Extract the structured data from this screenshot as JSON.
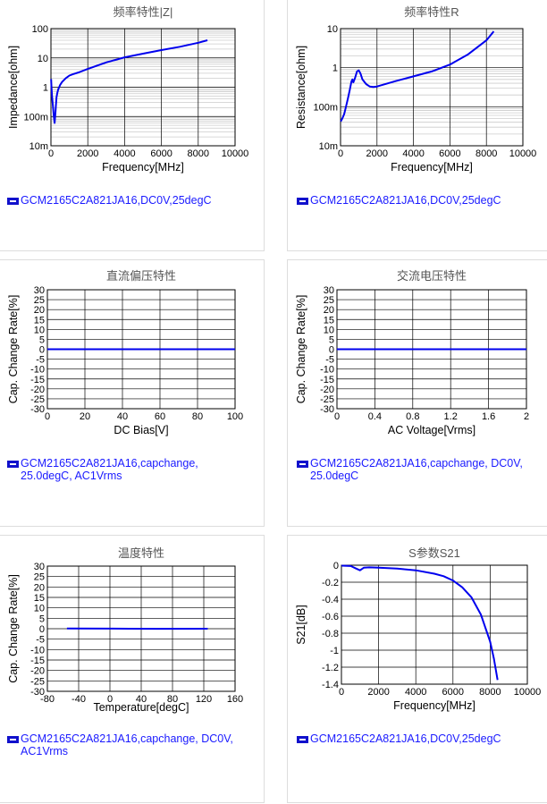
{
  "colors": {
    "series": "#0000ee",
    "legend_text": "#1a1aff",
    "grid": "#000000",
    "minor_grid": "#cccccc"
  },
  "chart_data": [
    {
      "type": "line",
      "title": "频率特性|Z|",
      "xlabel": "Frequency[MHz]",
      "ylabel": "Impedance[ohm]",
      "xlim": [
        0,
        10000
      ],
      "ylim": [
        0.01,
        100
      ],
      "yscale": "log",
      "grid": true,
      "xticks": [
        0,
        2000,
        4000,
        6000,
        8000,
        10000
      ],
      "xtick_labels": [
        "0",
        "2000",
        "4000",
        "6000",
        "8000",
        "10000"
      ],
      "yticks": [
        0.01,
        0.1,
        1,
        10,
        100
      ],
      "ytick_labels": [
        "10m",
        "100m",
        "1",
        "10",
        "100"
      ],
      "series": [
        {
          "name": "GCM2165C2A821JA16,DC0V,25degC",
          "x": [
            10,
            30,
            60,
            100,
            150,
            200,
            240,
            270,
            300,
            350,
            400,
            500,
            600,
            800,
            1000,
            1200,
            1500,
            2000,
            3000,
            4000,
            5000,
            6000,
            7000,
            8000,
            8500
          ],
          "y": [
            1.9,
            1.0,
            0.5,
            0.25,
            0.11,
            0.06,
            0.12,
            0.25,
            0.45,
            0.65,
            0.85,
            1.2,
            1.5,
            2.0,
            2.5,
            2.8,
            3.2,
            4.2,
            7.0,
            10.5,
            14.0,
            18.5,
            24.0,
            33.0,
            40.0
          ]
        }
      ],
      "legend": "GCM2165C2A821JA16,DC0V,25degC"
    },
    {
      "type": "line",
      "title": "频率特性R",
      "xlabel": "Frequency[MHz]",
      "ylabel": "Resistance[ohm]",
      "xlim": [
        0,
        10000
      ],
      "ylim": [
        0.01,
        10
      ],
      "yscale": "log",
      "grid": true,
      "xticks": [
        0,
        2000,
        4000,
        6000,
        8000,
        10000
      ],
      "xtick_labels": [
        "0",
        "2000",
        "4000",
        "6000",
        "8000",
        "10000"
      ],
      "yticks": [
        0.01,
        0.1,
        1,
        10
      ],
      "ytick_labels": [
        "10m",
        "100m",
        "1",
        "10"
      ],
      "series": [
        {
          "name": "GCM2165C2A821JA16,DC0V,25degC",
          "x": [
            10,
            100,
            200,
            300,
            400,
            500,
            600,
            650,
            700,
            800,
            900,
            1000,
            1100,
            1200,
            1400,
            1600,
            1800,
            2000,
            3000,
            4000,
            5000,
            6000,
            7000,
            8000,
            8400
          ],
          "y": [
            0.042,
            0.05,
            0.065,
            0.1,
            0.16,
            0.26,
            0.44,
            0.5,
            0.42,
            0.55,
            0.8,
            0.85,
            0.7,
            0.5,
            0.38,
            0.33,
            0.32,
            0.33,
            0.45,
            0.6,
            0.8,
            1.2,
            2.2,
            5.0,
            8.5
          ]
        }
      ],
      "legend": "GCM2165C2A821JA16,DC0V,25degC"
    },
    {
      "type": "line",
      "title": "直流偏压特性",
      "xlabel": "DC Bias[V]",
      "ylabel": "Cap. Change Rate[%]",
      "xlim": [
        0,
        100
      ],
      "ylim": [
        -30,
        30
      ],
      "grid": true,
      "xticks": [
        0,
        20,
        40,
        60,
        80,
        100
      ],
      "xtick_labels": [
        "0",
        "20",
        "40",
        "60",
        "80",
        "100"
      ],
      "yticks": [
        -30,
        -25,
        -20,
        -15,
        -10,
        -5,
        0,
        5,
        10,
        15,
        20,
        25,
        30
      ],
      "ytick_labels": [
        "-30",
        "-25",
        "-20",
        "-15",
        "-10",
        "-5",
        "0",
        "5",
        "10",
        "15",
        "20",
        "25",
        "30"
      ],
      "series": [
        {
          "name": "GCM2165C2A821JA16,capchange, 25.0degC, AC1Vrms",
          "x": [
            0,
            100
          ],
          "y": [
            0,
            0
          ]
        }
      ],
      "legend": "GCM2165C2A821JA16,capchange,\n25.0degC, AC1Vrms"
    },
    {
      "type": "line",
      "title": "交流电压特性",
      "xlabel": "AC Voltage[Vrms]",
      "ylabel": "Cap. Change Rate[%]",
      "xlim": [
        0,
        2
      ],
      "ylim": [
        -30,
        30
      ],
      "grid": true,
      "xticks": [
        0,
        0.4,
        0.8,
        1.2,
        1.6,
        2
      ],
      "xtick_labels": [
        "0",
        "0.4",
        "0.8",
        "1.2",
        "1.6",
        "2"
      ],
      "yticks": [
        -30,
        -25,
        -20,
        -15,
        -10,
        -5,
        0,
        5,
        10,
        15,
        20,
        25,
        30
      ],
      "ytick_labels": [
        "-30",
        "-25",
        "-20",
        "-15",
        "-10",
        "-5",
        "0",
        "5",
        "10",
        "15",
        "20",
        "25",
        "30"
      ],
      "series": [
        {
          "name": "GCM2165C2A821JA16,capchange, DC0V, 25.0degC",
          "x": [
            0,
            2
          ],
          "y": [
            0,
            0
          ]
        }
      ],
      "legend": "GCM2165C2A821JA16,capchange, DC0V,\n25.0degC"
    },
    {
      "type": "line",
      "title": "温度特性",
      "xlabel": "Temperature[degC]",
      "ylabel": "Cap. Change Rate[%]",
      "xlim": [
        -80,
        160
      ],
      "ylim": [
        -30,
        30
      ],
      "grid": true,
      "xticks": [
        -80,
        -40,
        0,
        40,
        80,
        120,
        160
      ],
      "xtick_labels": [
        "-80",
        "-40",
        "0",
        "40",
        "80",
        "120",
        "160"
      ],
      "yticks": [
        -30,
        -25,
        -20,
        -15,
        -10,
        -5,
        0,
        5,
        10,
        15,
        20,
        25,
        30
      ],
      "ytick_labels": [
        "-30",
        "-25",
        "-20",
        "-15",
        "-10",
        "-5",
        "0",
        "5",
        "10",
        "15",
        "20",
        "25",
        "30"
      ],
      "series": [
        {
          "name": "GCM2165C2A821JA16,capchange, DC0V, AC1Vrms",
          "x": [
            -55,
            0,
            25,
            60,
            125
          ],
          "y": [
            0.1,
            0.05,
            0,
            -0.05,
            0
          ]
        }
      ],
      "legend": "GCM2165C2A821JA16,capchange, DC0V,\nAC1Vrms"
    },
    {
      "type": "line",
      "title": "S参数S21",
      "xlabel": "Frequency[MHz]",
      "ylabel": "S21[dB]",
      "xlim": [
        0,
        10000
      ],
      "ylim": [
        -1.4,
        0
      ],
      "grid": true,
      "xticks": [
        0,
        2000,
        4000,
        6000,
        8000,
        10000
      ],
      "xtick_labels": [
        "0",
        "2000",
        "4000",
        "6000",
        "8000",
        "10000"
      ],
      "yticks": [
        0,
        -0.2,
        -0.4,
        -0.6,
        -0.8,
        -1,
        -1.2,
        -1.4
      ],
      "ytick_labels": [
        "0",
        "-0.2",
        "-0.4",
        "-0.6",
        "-0.8",
        "-1",
        "-1.2",
        "-1.4"
      ],
      "series": [
        {
          "name": "GCM2165C2A821JA16,DC0V,25degC",
          "x": [
            10,
            500,
            800,
            1000,
            1200,
            1500,
            2000,
            3000,
            4000,
            5000,
            5500,
            6000,
            6500,
            7000,
            7500,
            8000,
            8200,
            8400
          ],
          "y": [
            -0.005,
            -0.01,
            -0.04,
            -0.06,
            -0.03,
            -0.025,
            -0.028,
            -0.04,
            -0.06,
            -0.1,
            -0.13,
            -0.18,
            -0.26,
            -0.38,
            -0.58,
            -0.9,
            -1.1,
            -1.35
          ]
        }
      ],
      "legend": "GCM2165C2A821JA16,DC0V,25degC"
    }
  ]
}
